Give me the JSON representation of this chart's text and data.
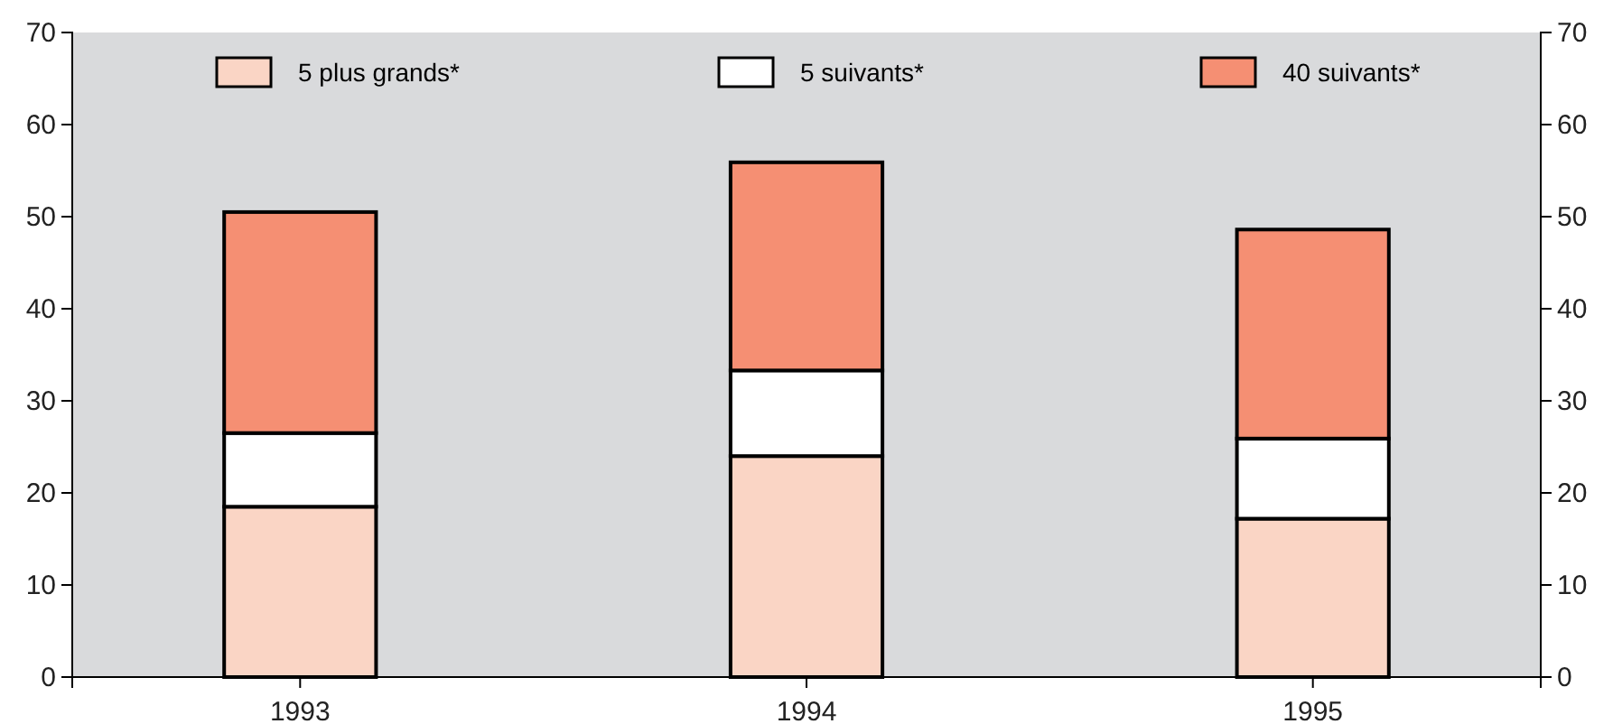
{
  "chart_data": {
    "type": "bar",
    "stacked": true,
    "categories": [
      "1993",
      "1994",
      "1995"
    ],
    "series": [
      {
        "name": "5 plus grands*",
        "color": "#fad5c5",
        "values": [
          18.5,
          24,
          17.2
        ]
      },
      {
        "name": "5 suivants*",
        "color": "#ffffff",
        "values": [
          8,
          9.3,
          8.7
        ]
      },
      {
        "name": "40 suivants*",
        "color": "#f58f73",
        "values": [
          24,
          22.6,
          22.7
        ]
      }
    ],
    "ylim": [
      0,
      70
    ],
    "yticks": [
      0,
      10,
      20,
      30,
      40,
      50,
      60,
      70
    ],
    "y2lim": [
      0,
      70
    ],
    "y2ticks": [
      0,
      10,
      20,
      30,
      40,
      50,
      60,
      70
    ],
    "legend": "top",
    "grid": false
  }
}
